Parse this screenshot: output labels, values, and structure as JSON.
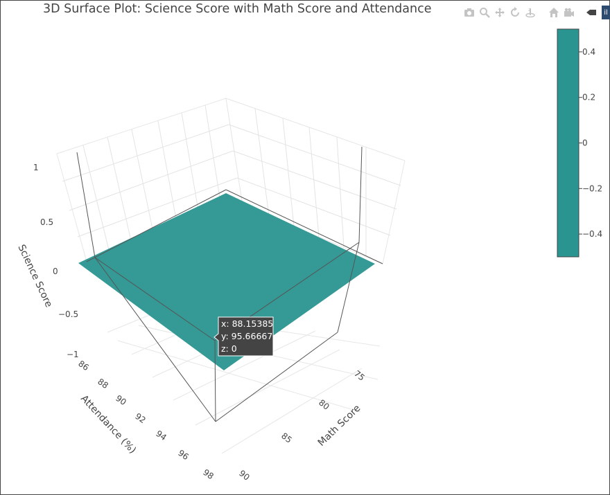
{
  "title": "3D Surface Plot: Science Score with Math Score and Attendance",
  "modebar": {
    "icons": [
      "camera-icon",
      "zoom-icon",
      "pan-icon",
      "orbit-rotate-icon",
      "turntable-icon",
      "home-icon",
      "camera-view-icon",
      "spike-toggle-icon"
    ],
    "logo": "il"
  },
  "chart_data": {
    "type": "surface",
    "title": "3D Surface Plot: Science Score with Math Score and Attendance",
    "x_label": "Math Score",
    "y_label": "Attendance (%)",
    "z_label": "Science Score",
    "x_ticks": [
      "75",
      "80",
      "85",
      "90"
    ],
    "y_ticks": [
      "86",
      "88",
      "90",
      "92",
      "94",
      "96",
      "98"
    ],
    "z_ticks": [
      "1",
      "0.5",
      "0",
      "−0.5",
      "−1"
    ],
    "x_range": [
      72,
      90
    ],
    "y_range": [
      85,
      98
    ],
    "z_range": [
      -1,
      1
    ],
    "surface": {
      "z_constant": 0,
      "color": "#2a9590"
    },
    "colorbar": {
      "ticks": [
        "0.4",
        "0.2",
        "0",
        "−0.2",
        "−0.4"
      ],
      "tick_values": [
        0.4,
        0.2,
        0,
        -0.2,
        -0.4
      ],
      "range": [
        -0.5,
        0.5
      ],
      "color": "#2a9590"
    },
    "hover": {
      "x": "x: 88.15385",
      "y": "y: 95.66667",
      "z": "z: 0"
    }
  }
}
